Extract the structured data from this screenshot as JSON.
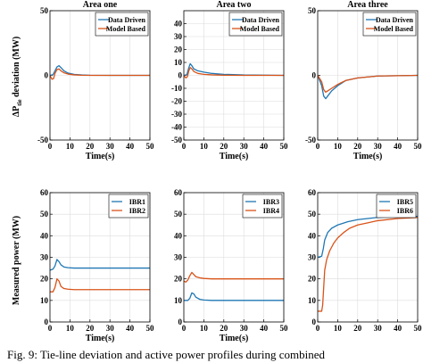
{
  "caption": "Fig. 9: Tie-line deviation and active power profiles during combined",
  "colors": {
    "blue": "#1f77b4",
    "orange": "#d95319"
  },
  "chart_data": [
    {
      "type": "line",
      "title": "Area one",
      "xlabel": "Time(s)",
      "ylabel": "ΔP_tie deviation (MW)",
      "xlim": [
        0,
        50
      ],
      "ylim": [
        -50,
        50
      ],
      "xticks": [
        0,
        10,
        20,
        30,
        40,
        50
      ],
      "yticks": [
        -50,
        0,
        50
      ],
      "legend": "top-right",
      "grid": true,
      "series": [
        {
          "name": "Data Driven",
          "color": "blue",
          "x": [
            0,
            1.5,
            2.5,
            3.5,
            4.5,
            5.5,
            7,
            9,
            12,
            16,
            20,
            30,
            50
          ],
          "y": [
            0,
            0.5,
            3.5,
            6.5,
            7.5,
            6,
            3.5,
            1.8,
            0.8,
            0.3,
            0.1,
            0,
            0
          ]
        },
        {
          "name": "Model Based",
          "color": "orange",
          "x": [
            0,
            1,
            1.8,
            2.5,
            3.5,
            4.5,
            5.5,
            7,
            9,
            12,
            16,
            20,
            30,
            50
          ],
          "y": [
            0,
            -3,
            -2.5,
            1.5,
            4.5,
            5,
            3.5,
            2,
            1,
            0.4,
            0.1,
            0,
            0,
            0
          ]
        }
      ]
    },
    {
      "type": "line",
      "title": "Area two",
      "xlabel": "Time(s)",
      "ylabel": "",
      "xlim": [
        0,
        50
      ],
      "ylim": [
        -50,
        50
      ],
      "xticks": [
        0,
        10,
        20,
        30,
        40,
        50
      ],
      "yticks": [
        -50,
        -40,
        -30,
        -20,
        -10,
        0,
        10,
        20,
        30,
        40
      ],
      "legend": "top-right",
      "grid": true,
      "series": [
        {
          "name": "Data Driven",
          "color": "blue",
          "x": [
            0,
            1.5,
            2.5,
            3.2,
            4,
            5,
            7,
            10,
            14,
            20,
            30,
            50
          ],
          "y": [
            0,
            0.5,
            6,
            9,
            7.5,
            5,
            3.5,
            2.5,
            1.5,
            0.8,
            0.3,
            0
          ]
        },
        {
          "name": "Model Based",
          "color": "orange",
          "x": [
            0,
            1,
            1.8,
            2.5,
            3.2,
            4,
            5,
            7,
            10,
            14,
            20,
            30,
            50
          ],
          "y": [
            0,
            -2,
            -1,
            3.5,
            6,
            5,
            3,
            1.5,
            0.8,
            0.4,
            0.1,
            0,
            0
          ]
        }
      ]
    },
    {
      "type": "line",
      "title": "Area three",
      "xlabel": "Time(s)",
      "ylabel": "",
      "xlim": [
        0,
        50
      ],
      "ylim": [
        -50,
        50
      ],
      "xticks": [
        0,
        10,
        20,
        30,
        40,
        50
      ],
      "yticks": [
        -50,
        0,
        50
      ],
      "legend": "top-right",
      "grid": true,
      "series": [
        {
          "name": "Data Driven",
          "color": "blue",
          "x": [
            0,
            2,
            3,
            4,
            5,
            7,
            10,
            14,
            20,
            30,
            50
          ],
          "y": [
            0,
            -8,
            -16,
            -18,
            -16,
            -12,
            -8,
            -4,
            -2,
            -0.5,
            0
          ]
        },
        {
          "name": "Model Based",
          "color": "orange",
          "x": [
            0,
            2,
            3,
            4,
            5,
            7,
            10,
            14,
            20,
            30,
            50
          ],
          "y": [
            0,
            -5,
            -11,
            -13,
            -12,
            -10,
            -7,
            -4,
            -2,
            -0.5,
            0
          ]
        }
      ]
    },
    {
      "type": "line",
      "title": "",
      "xlabel": "Time(s)",
      "ylabel": "Measured power (MW)",
      "xlim": [
        0,
        50
      ],
      "ylim": [
        0,
        60
      ],
      "xticks": [
        0,
        10,
        20,
        30,
        40,
        50
      ],
      "yticks": [
        0,
        10,
        20,
        30,
        40,
        50,
        60
      ],
      "legend": "top-right",
      "grid": true,
      "series": [
        {
          "name": "IBR1",
          "color": "blue",
          "x": [
            0,
            1.5,
            2.5,
            3.5,
            4.5,
            5.5,
            7,
            9,
            12,
            20,
            50
          ],
          "y": [
            24,
            24.5,
            26,
            29,
            28,
            26.5,
            25.5,
            25.2,
            25,
            25,
            25
          ]
        },
        {
          "name": "IBR2",
          "color": "orange",
          "x": [
            0,
            1.5,
            2.5,
            3.5,
            4.5,
            5.5,
            7,
            9,
            12,
            20,
            50
          ],
          "y": [
            14,
            14,
            16,
            20,
            19,
            16.5,
            15.5,
            15.2,
            15,
            15,
            15
          ]
        }
      ]
    },
    {
      "type": "line",
      "title": "",
      "xlabel": "Time(s)",
      "ylabel": "",
      "xlim": [
        0,
        50
      ],
      "ylim": [
        0,
        60
      ],
      "xticks": [
        0,
        10,
        20,
        30,
        40,
        50
      ],
      "yticks": [
        0,
        10,
        20,
        30,
        40,
        50,
        60
      ],
      "legend": "top-right",
      "grid": true,
      "series": [
        {
          "name": "IBR3",
          "color": "blue",
          "x": [
            0,
            2,
            3,
            4,
            5,
            6,
            8,
            10,
            14,
            20,
            50
          ],
          "y": [
            10,
            10,
            11,
            13.5,
            13,
            11.5,
            10.5,
            10.2,
            10,
            10,
            10
          ]
        },
        {
          "name": "IBR4",
          "color": "orange",
          "x": [
            0,
            1,
            2,
            3,
            4,
            5,
            6,
            8,
            10,
            14,
            20,
            50
          ],
          "y": [
            19,
            18.5,
            19.5,
            21.5,
            23,
            22,
            21,
            20.5,
            20.2,
            20,
            20,
            20
          ]
        }
      ]
    },
    {
      "type": "line",
      "title": "",
      "xlabel": "",
      "ylabel": "",
      "xlim": [
        0,
        50
      ],
      "ylim": [
        0,
        60
      ],
      "xticks": [
        0,
        10,
        20,
        30,
        40,
        50
      ],
      "yticks": [
        0,
        10,
        20,
        30,
        40,
        50,
        60
      ],
      "legend": "top-right",
      "grid": true,
      "series": [
        {
          "name": "IBR5",
          "color": "blue",
          "x": [
            0,
            2,
            2.8,
            3.5,
            5,
            7,
            10,
            15,
            20,
            25,
            30,
            40,
            50
          ],
          "y": [
            30,
            30.5,
            34,
            38,
            41.5,
            43.5,
            45,
            46.5,
            47.5,
            48,
            48.5,
            49,
            49
          ]
        },
        {
          "name": "IBR6",
          "color": "orange",
          "x": [
            0,
            2,
            2.5,
            3,
            3.5,
            4.5,
            6,
            8,
            10,
            13,
            16,
            20,
            25,
            30,
            40,
            50
          ],
          "y": [
            5,
            5,
            8,
            16,
            24,
            29,
            33,
            36.5,
            39,
            41.5,
            43.5,
            45,
            46,
            47,
            48,
            48.5
          ]
        }
      ]
    }
  ]
}
